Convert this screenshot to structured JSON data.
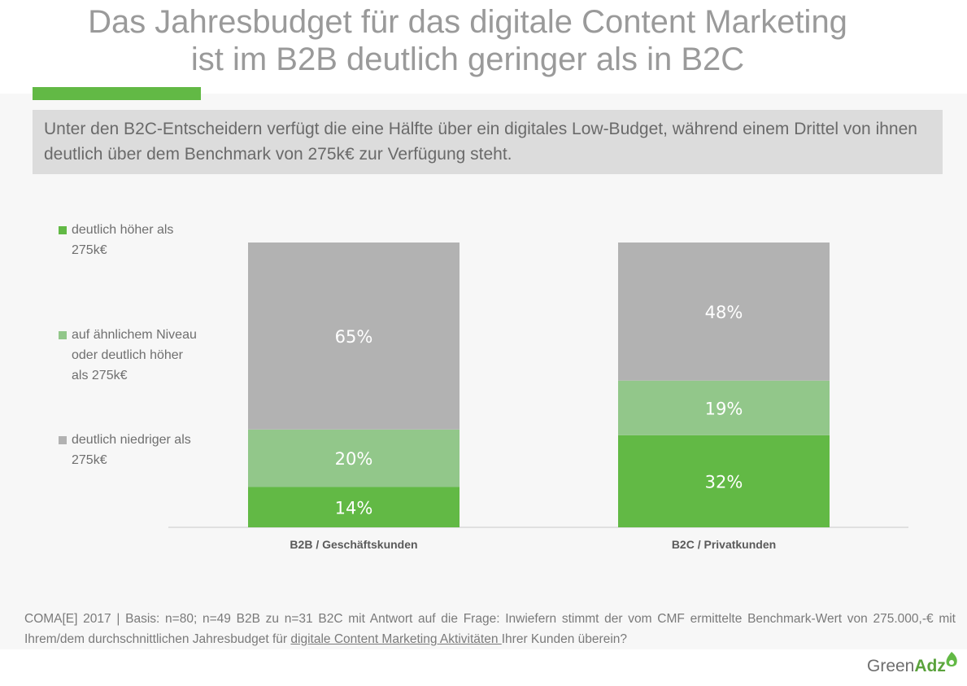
{
  "title": {
    "line1": "Das Jahresbudget für das digitale Content Marketing",
    "line2": "ist im B2B deutlich geringer als in B2C"
  },
  "subtitle": "Unter den B2C-Entscheidern verfügt die eine Hälfte über ein digitales Low-Budget, während einem Drittel von ihnen deutlich über dem Benchmark von 275k€ zur Verfügung steht.",
  "colors": {
    "accent": "#62b945",
    "dark_green": "#62b945",
    "light_green": "#92c78a",
    "gray": "#b2b2b2"
  },
  "chart_data": {
    "type": "bar",
    "stacked": true,
    "categories": [
      "B2B / Geschäftskunden",
      "B2C / Privatkunden"
    ],
    "series": [
      {
        "name": "deutlich höher als 275k€",
        "color": "#62b945",
        "values": [
          14,
          32
        ],
        "labels": [
          "14%",
          "32%"
        ]
      },
      {
        "name": "auf ähnlichem Niveau oder deutlich höher als 275k€",
        "color": "#92c78a",
        "values": [
          20,
          19
        ],
        "labels": [
          "20%",
          "19%"
        ]
      },
      {
        "name": "deutlich niedriger als 275k€",
        "color": "#b2b2b2",
        "values": [
          65,
          48
        ],
        "labels": [
          "65%",
          "48%"
        ]
      }
    ],
    "legend_position": "left",
    "grid": false
  },
  "legend": [
    {
      "line1": "deutlich höher als",
      "line2": "275k€",
      "line3": ""
    },
    {
      "line1": "auf ähnlichem Niveau",
      "line2": "oder deutlich höher",
      "line3": "als 275k€"
    },
    {
      "line1": "deutlich niedriger als",
      "line2": "275k€",
      "line3": ""
    }
  ],
  "footnote": {
    "part1": "COMA[E] 2017 | Basis: n=80;  n=49 B2B zu n=31 B2C mit Antwort auf die Frage: Inwiefern stimmt der vom CMF ermittelte Benchmark-Wert von 275.000,-€ mit Ihrem/dem durchschnittlichen Jahresbudget für ",
    "underlined": "digitale Content Marketing Aktivitäten ",
    "part2": "Ihrer Kunden überein?"
  },
  "logo": {
    "green": "Green",
    "adz": "Adz"
  }
}
